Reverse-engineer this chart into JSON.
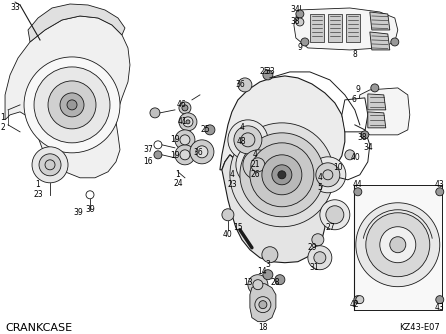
{
  "title": "CRANKCASE",
  "diagram_code": "KZ43-E07",
  "background_color": "#ffffff",
  "text_color": "#000000",
  "figsize": [
    4.46,
    3.34
  ],
  "dpi": 100,
  "line_color": "#1a1a1a",
  "fill_light": "#e8e8e8",
  "fill_mid": "#cccccc",
  "fill_dark": "#999999",
  "fill_white": "#ffffff"
}
